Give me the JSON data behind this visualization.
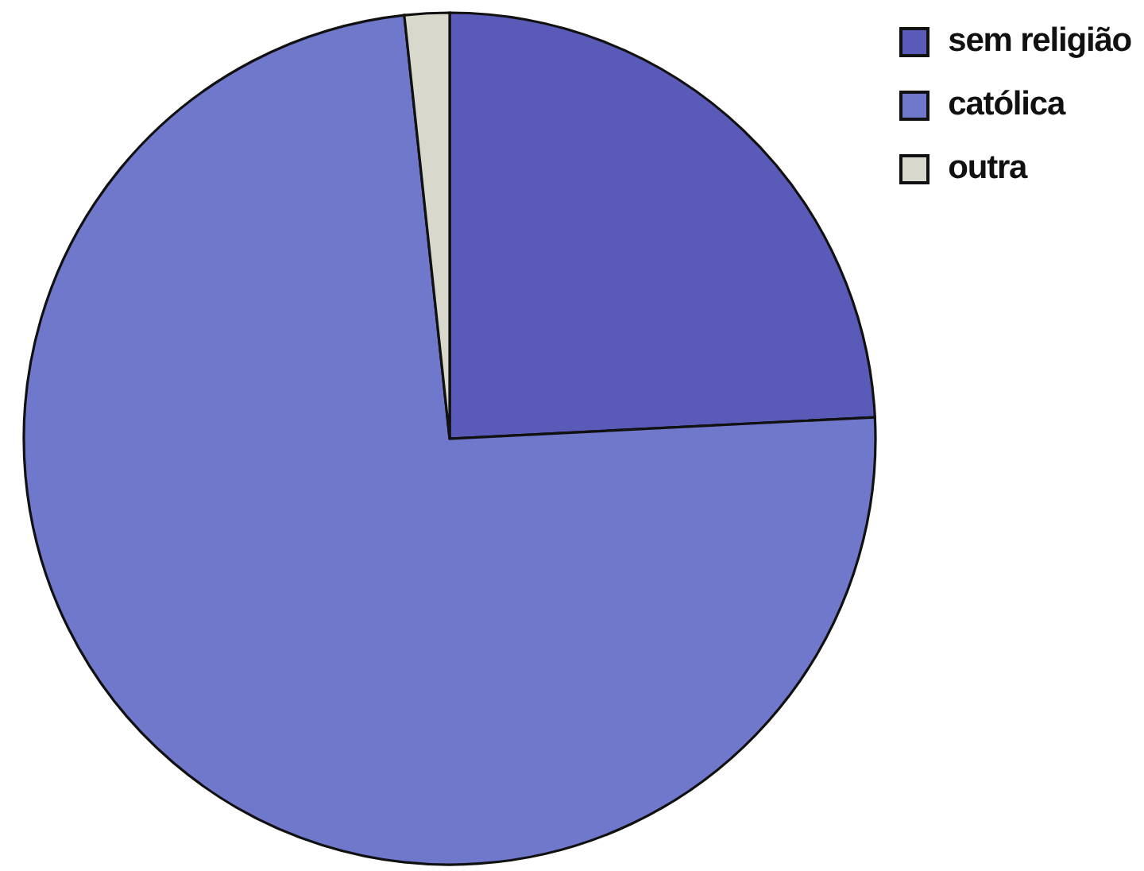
{
  "chart_data": {
    "type": "pie",
    "categories": [
      "sem religião",
      "católica",
      "outra"
    ],
    "values": [
      24.2,
      74.1,
      1.7
    ],
    "colors": [
      "#5a5ab8",
      "#7078cc",
      "#d8d8cc"
    ],
    "legend": "top right"
  }
}
